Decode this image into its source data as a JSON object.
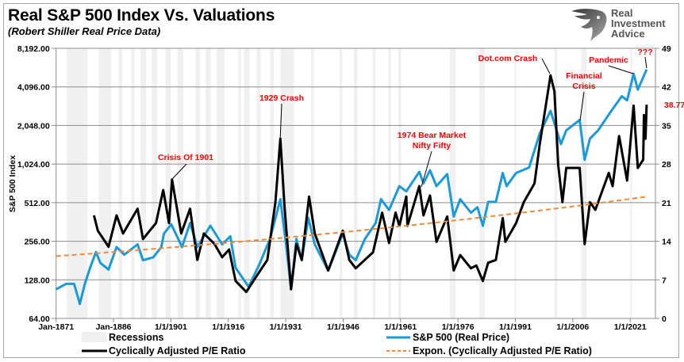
{
  "header": {
    "title": "Real S&P 500 Index Vs. Valuations",
    "subtitle": "(Robert Shiller Real Price Data)"
  },
  "logo": {
    "line1": "Real",
    "line2": "Investment",
    "line3": "Advice"
  },
  "chart_data": {
    "type": "line",
    "title": "Real S&P 500 Index Vs. Valuations",
    "subtitle": "(Robert Shiller Real Price Data)",
    "ylabel": "S&P 500 Index",
    "xlim": [
      1871,
      2027.6
    ],
    "x_tick_labels": [
      "Jan-1871",
      "Jan-1886",
      "1/1/1901",
      "1/1/1916",
      "1/1/1931",
      "1/1/1946",
      "1/1/1961",
      "1/1/1976",
      "1/1/1991",
      "1/1/2006",
      "1/1/2021"
    ],
    "y_left": {
      "scale": "log2",
      "lim": [
        64,
        8192
      ],
      "tick_values": [
        64,
        128,
        256,
        512,
        1024,
        2048,
        4096,
        8192
      ],
      "tick_labels": [
        "64.00",
        "128.00",
        "256.00",
        "512.00",
        "1,024.00",
        "2,048.00",
        "4,096.00",
        "8,192.00"
      ]
    },
    "y_right": {
      "scale": "linear",
      "lim": [
        0,
        49
      ],
      "tick_values": [
        0,
        7,
        14,
        21,
        28,
        35,
        42,
        49
      ],
      "tick_labels": [
        "0",
        "7",
        "14",
        "21",
        "28",
        "35",
        "42",
        "49"
      ]
    },
    "grid": "horizontal",
    "legend_placement": "bottom",
    "recessions": {
      "name": "Recessions",
      "color": "#f0f0f0",
      "periods": [
        [
          1873.8,
          1879.2
        ],
        [
          1882.1,
          1885.4
        ],
        [
          1887.3,
          1888.3
        ],
        [
          1890.6,
          1891.5
        ],
        [
          1893,
          1894.5
        ],
        [
          1896,
          1897.4
        ],
        [
          1899.6,
          1901
        ],
        [
          1902.7,
          1904.2
        ],
        [
          1907.4,
          1908.6
        ],
        [
          1910.1,
          1911.4
        ],
        [
          1913,
          1915
        ],
        [
          1918.6,
          1919.3
        ],
        [
          1920.1,
          1921.6
        ],
        [
          1923.4,
          1924.5
        ],
        [
          1926.9,
          1927.9
        ],
        [
          1929.6,
          1933.2
        ],
        [
          1937.6,
          1938.4
        ],
        [
          1945.1,
          1945.8
        ],
        [
          1948.8,
          1949.8
        ],
        [
          1953.7,
          1954.4
        ],
        [
          1957.8,
          1958.5
        ],
        [
          1960.4,
          1961.2
        ],
        [
          1973.9,
          1975.4
        ],
        [
          1981.6,
          1983
        ],
        [
          1990.8,
          1991.2
        ],
        [
          2001.2,
          2001.9
        ],
        [
          2008.2,
          2009.6
        ],
        [
          2021,
          2021.5
        ]
      ]
    },
    "series": [
      {
        "name": "S&P 500 (Real Price)",
        "axis": "left",
        "color": "#1a9ad6",
        "x": [
          1871,
          1873.6,
          1875.7,
          1877.2,
          1878.5,
          1879.9,
          1881.4,
          1882.6,
          1884.7,
          1886.8,
          1888.8,
          1892.3,
          1893.7,
          1896.4,
          1898.5,
          1899.2,
          1901.1,
          1903.9,
          1906,
          1907.9,
          1911.3,
          1914.4,
          1916.5,
          1917.9,
          1921.3,
          1924,
          1926.9,
          1929.6,
          1931,
          1932.4,
          1933.8,
          1935.2,
          1936.9,
          1938.6,
          1942.1,
          1945.9,
          1947.6,
          1949.3,
          1951.7,
          1954.5,
          1955.9,
          1958,
          1960.7,
          1962.5,
          1965.9,
          1967,
          1968.7,
          1970.4,
          1973.2,
          1974.9,
          1976.6,
          1979.4,
          1981.1,
          1982.5,
          1983.9,
          1985.9,
          1987.7,
          1988.7,
          1991.2,
          1994.6,
          1997.4,
          2000.2,
          2002.9,
          2004.3,
          2007.8,
          2009.1,
          2010.5,
          2012.6,
          2016.1,
          2018.8,
          2020.2,
          2021.9,
          2023,
          2025.3
        ],
        "y": [
          108,
          119,
          119,
          83,
          119,
          159,
          211,
          173,
          154,
          231,
          201,
          242,
          182,
          192,
          231,
          294,
          347,
          231,
          355,
          231,
          338,
          242,
          280,
          159,
          113,
          166,
          267,
          545,
          254,
          108,
          267,
          182,
          390,
          242,
          151,
          294,
          201,
          182,
          267,
          355,
          545,
          449,
          689,
          627,
          891,
          724,
          916,
          689,
          855,
          399,
          545,
          428,
          471,
          338,
          519,
          519,
          873,
          689,
          873,
          962,
          1783,
          2666,
          1468,
          1872,
          2264,
          1107,
          1620,
          1872,
          2666,
          3466,
          3215,
          5182,
          3900,
          5600
        ]
      },
      {
        "name": "Cyclically Adjusted P/E Ratio",
        "axis": "right",
        "color": "#000000",
        "x": [
          1880.9,
          1881.9,
          1884.7,
          1886.8,
          1888.5,
          1892.3,
          1893.7,
          1897.1,
          1899,
          1900.5,
          1901.3,
          1903.7,
          1906,
          1907.9,
          1909.6,
          1912.4,
          1914.4,
          1916.2,
          1917.9,
          1920.7,
          1923.4,
          1926.2,
          1928.3,
          1929.6,
          1930.7,
          1932.4,
          1933.8,
          1935.2,
          1937.1,
          1938.6,
          1942.1,
          1945.9,
          1947.6,
          1949.3,
          1953.8,
          1956.2,
          1958,
          1959.7,
          1960.7,
          1962.5,
          1962.8,
          1965.9,
          1967,
          1968.7,
          1970.4,
          1973.2,
          1974.9,
          1976.6,
          1979.4,
          1980.8,
          1982.5,
          1983.9,
          1985.9,
          1987.7,
          1988.4,
          1991.2,
          1993.2,
          1996,
          1997.4,
          2000.2,
          2001.2,
          2002.2,
          2003.3,
          2004.3,
          2007.8,
          2009.1,
          2010.5,
          2011.9,
          2015.4,
          2016.4,
          2018.1,
          2020.2,
          2021.9,
          2023,
          2024.4,
          2024.6,
          2025,
          2025.3
        ],
        "y": [
          18.7,
          15.9,
          13,
          18.7,
          15.4,
          19.9,
          14.4,
          17.3,
          23.3,
          17.3,
          25.2,
          15.4,
          19.9,
          10.6,
          15.4,
          13.5,
          11.1,
          12.5,
          6.8,
          4.8,
          7.7,
          10.6,
          21.1,
          32.6,
          20.2,
          5.3,
          13.5,
          10.6,
          22.1,
          15.4,
          8.7,
          15.9,
          10.6,
          9.1,
          12,
          19.2,
          13.7,
          19.2,
          16.8,
          22.1,
          16.8,
          24,
          18.7,
          22.3,
          13.9,
          18.5,
          8.7,
          11.5,
          9.1,
          9.6,
          6.8,
          10.1,
          10.6,
          18.2,
          13.9,
          17.3,
          21.1,
          24.5,
          31.7,
          44.1,
          41.2,
          27.8,
          21.1,
          27.3,
          27.3,
          13.5,
          21.1,
          19.7,
          26.4,
          24,
          33.1,
          25,
          38.6,
          27.3,
          28.8,
          36.9,
          32.6,
          38.77
        ]
      },
      {
        "name": "Expon. (Cyclically Adjusted P/E Ratio)",
        "axis": "right",
        "kind": "exponential trendline",
        "color": "#f08a3a",
        "dashed": true,
        "x": [
          1871,
          2025.3
        ],
        "y": [
          11.3,
          22.1
        ]
      }
    ],
    "last_value_label": "38.77",
    "annotations": [
      {
        "lines": [
          "Crisis Of 1901"
        ],
        "target_year": 1901.3
      },
      {
        "lines": [
          "1929 Crash"
        ],
        "target_year": 1929.6
      },
      {
        "lines": [
          "1974 Bear Market",
          "Nifty Fifty"
        ],
        "target_year": 1973.2
      },
      {
        "lines": [
          "Dot.com Crash"
        ],
        "target_year": 2000.2
      },
      {
        "lines": [
          "Financial",
          "Crisis"
        ],
        "target_year": 2007.8
      },
      {
        "lines": [
          "Pandemic"
        ],
        "target_year": 2021.9
      },
      {
        "lines": [
          "???"
        ],
        "target_year": 2025.3
      }
    ]
  }
}
